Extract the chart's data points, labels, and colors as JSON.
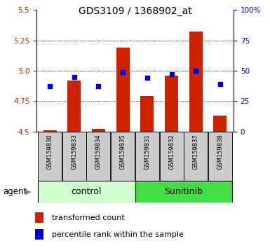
{
  "title": "GDS3109 / 1368902_at",
  "samples": [
    "GSM159830",
    "GSM159833",
    "GSM159834",
    "GSM159835",
    "GSM159831",
    "GSM159832",
    "GSM159837",
    "GSM159838"
  ],
  "groups": [
    "control",
    "control",
    "control",
    "control",
    "Sunitinib",
    "Sunitinib",
    "Sunitinib",
    "Sunitinib"
  ],
  "transformed_count": [
    4.51,
    4.92,
    4.52,
    5.19,
    4.79,
    4.96,
    5.32,
    4.63
  ],
  "percentile_rank": [
    37,
    45,
    37,
    49,
    44,
    47,
    50,
    39
  ],
  "ylim_left": [
    4.5,
    5.5
  ],
  "ylim_right": [
    0,
    100
  ],
  "yticks_left": [
    4.5,
    4.75,
    5.0,
    5.25,
    5.5
  ],
  "yticks_right": [
    0,
    25,
    50,
    75,
    100
  ],
  "bar_color": "#cc2200",
  "dot_color": "#0000cc",
  "control_bg": "#ccffcc",
  "sunitinib_bg": "#44dd44",
  "label_bg": "#cccccc",
  "agent_label": "agent",
  "legend_bar": "transformed count",
  "legend_dot": "percentile rank within the sample",
  "grid_ticks": [
    4.75,
    5.0,
    5.25
  ]
}
